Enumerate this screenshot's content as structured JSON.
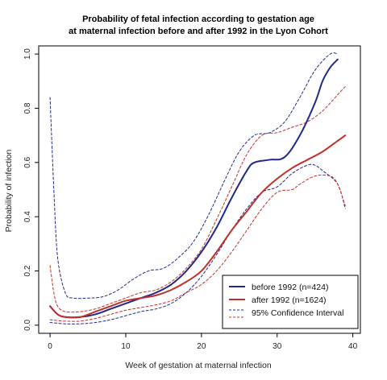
{
  "chart_data": {
    "type": "line",
    "title": "Probability of fetal infection  according to gestation age",
    "subtitle": "at maternal infection before and after 1992 in the Lyon Cohort",
    "xlabel": "Week of gestation at maternal infection",
    "ylabel": "Probability of infection",
    "xlim": [
      -1.5,
      41
    ],
    "ylim": [
      -0.03,
      1.03
    ],
    "x_ticks": [
      0,
      10,
      20,
      30,
      40
    ],
    "y_ticks": [
      0.0,
      0.2,
      0.4,
      0.6,
      0.8,
      1.0
    ],
    "x_tick_labels": [
      "0",
      "10",
      "20",
      "30",
      "40"
    ],
    "y_tick_labels": [
      "0.0",
      "0.2",
      "0.4",
      "0.6",
      "0.8",
      "1.0"
    ],
    "grid": false,
    "legend_position": "bottom-right",
    "legend": [
      {
        "label": "before 1992 (n=424)",
        "color": "#1f2a8c",
        "style": "solid"
      },
      {
        "label": "after 1992 (n=1624)",
        "color": "#c0302a",
        "style": "solid"
      },
      {
        "label": "95% Confidence Interval",
        "colors": [
          "#1f2a8c",
          "#c0302a"
        ],
        "style": "dashed"
      }
    ],
    "series": [
      {
        "name": "before 1992 (n=424)",
        "color": "#1f2a8c",
        "style": "solid",
        "width": 2,
        "points": [
          [
            0,
            0.07
          ],
          [
            1,
            0.04
          ],
          [
            2,
            0.03
          ],
          [
            4,
            0.03
          ],
          [
            6,
            0.04
          ],
          [
            8,
            0.06
          ],
          [
            10,
            0.08
          ],
          [
            12,
            0.1
          ],
          [
            14,
            0.12
          ],
          [
            16,
            0.15
          ],
          [
            18,
            0.2
          ],
          [
            20,
            0.27
          ],
          [
            22,
            0.36
          ],
          [
            24,
            0.47
          ],
          [
            26,
            0.57
          ],
          [
            27,
            0.6
          ],
          [
            29,
            0.61
          ],
          [
            31,
            0.62
          ],
          [
            33,
            0.7
          ],
          [
            35,
            0.82
          ],
          [
            36,
            0.9
          ],
          [
            37,
            0.95
          ],
          [
            38,
            0.98
          ]
        ]
      },
      {
        "name": "after 1992 (n=1624)",
        "color": "#c0302a",
        "style": "solid",
        "width": 2,
        "points": [
          [
            0,
            0.07
          ],
          [
            1,
            0.04
          ],
          [
            2,
            0.03
          ],
          [
            4,
            0.03
          ],
          [
            6,
            0.05
          ],
          [
            8,
            0.07
          ],
          [
            10,
            0.09
          ],
          [
            12,
            0.1
          ],
          [
            14,
            0.11
          ],
          [
            16,
            0.13
          ],
          [
            18,
            0.16
          ],
          [
            20,
            0.2
          ],
          [
            22,
            0.27
          ],
          [
            24,
            0.35
          ],
          [
            26,
            0.42
          ],
          [
            28,
            0.49
          ],
          [
            30,
            0.54
          ],
          [
            32,
            0.58
          ],
          [
            34,
            0.61
          ],
          [
            36,
            0.64
          ],
          [
            38,
            0.68
          ],
          [
            39,
            0.7
          ]
        ]
      },
      {
        "name": "",
        "color": "#1f2a8c",
        "style": "dashed",
        "width": 1,
        "points": [
          [
            0,
            0.84
          ],
          [
            0.5,
            0.5
          ],
          [
            1,
            0.25
          ],
          [
            2,
            0.12
          ],
          [
            3,
            0.1
          ],
          [
            5,
            0.1
          ],
          [
            7,
            0.105
          ],
          [
            9,
            0.13
          ],
          [
            11,
            0.17
          ],
          [
            13,
            0.2
          ],
          [
            15,
            0.21
          ],
          [
            17,
            0.25
          ],
          [
            19,
            0.31
          ],
          [
            21,
            0.41
          ],
          [
            23,
            0.53
          ],
          [
            25,
            0.64
          ],
          [
            27,
            0.7
          ],
          [
            29,
            0.71
          ],
          [
            31,
            0.75
          ],
          [
            33,
            0.84
          ],
          [
            35,
            0.94
          ],
          [
            37,
            1.0
          ],
          [
            38,
            1.0
          ]
        ]
      },
      {
        "name": "",
        "color": "#1f2a8c",
        "style": "dashed",
        "width": 1,
        "points": [
          [
            0,
            0.01
          ],
          [
            2,
            0.005
          ],
          [
            4,
            0.005
          ],
          [
            6,
            0.01
          ],
          [
            8,
            0.02
          ],
          [
            10,
            0.035
          ],
          [
            12,
            0.05
          ],
          [
            14,
            0.06
          ],
          [
            16,
            0.08
          ],
          [
            18,
            0.12
          ],
          [
            20,
            0.18
          ],
          [
            22,
            0.26
          ],
          [
            24,
            0.35
          ],
          [
            26,
            0.43
          ],
          [
            28,
            0.49
          ],
          [
            30,
            0.51
          ],
          [
            32,
            0.56
          ],
          [
            34,
            0.59
          ],
          [
            35,
            0.59
          ],
          [
            36,
            0.57
          ],
          [
            38,
            0.52
          ],
          [
            39,
            0.43
          ]
        ]
      },
      {
        "name": "",
        "color": "#c0302a",
        "style": "dashed",
        "width": 1,
        "points": [
          [
            0,
            0.22
          ],
          [
            0.5,
            0.12
          ],
          [
            1,
            0.07
          ],
          [
            2,
            0.05
          ],
          [
            4,
            0.05
          ],
          [
            6,
            0.06
          ],
          [
            8,
            0.08
          ],
          [
            10,
            0.1
          ],
          [
            12,
            0.12
          ],
          [
            14,
            0.13
          ],
          [
            16,
            0.16
          ],
          [
            18,
            0.21
          ],
          [
            20,
            0.28
          ],
          [
            22,
            0.39
          ],
          [
            24,
            0.51
          ],
          [
            26,
            0.63
          ],
          [
            28,
            0.7
          ],
          [
            30,
            0.71
          ],
          [
            32,
            0.73
          ],
          [
            34,
            0.75
          ],
          [
            36,
            0.79
          ],
          [
            38,
            0.85
          ],
          [
            39,
            0.88
          ]
        ]
      },
      {
        "name": "",
        "color": "#c0302a",
        "style": "dashed",
        "width": 1,
        "points": [
          [
            0,
            0.02
          ],
          [
            2,
            0.015
          ],
          [
            4,
            0.015
          ],
          [
            6,
            0.025
          ],
          [
            8,
            0.04
          ],
          [
            10,
            0.055
          ],
          [
            12,
            0.065
          ],
          [
            14,
            0.075
          ],
          [
            16,
            0.09
          ],
          [
            18,
            0.12
          ],
          [
            20,
            0.15
          ],
          [
            22,
            0.2
          ],
          [
            24,
            0.27
          ],
          [
            26,
            0.35
          ],
          [
            28,
            0.43
          ],
          [
            30,
            0.49
          ],
          [
            32,
            0.5
          ],
          [
            33,
            0.52
          ],
          [
            35,
            0.55
          ],
          [
            37,
            0.55
          ],
          [
            38,
            0.52
          ],
          [
            39,
            0.44
          ]
        ]
      }
    ]
  }
}
